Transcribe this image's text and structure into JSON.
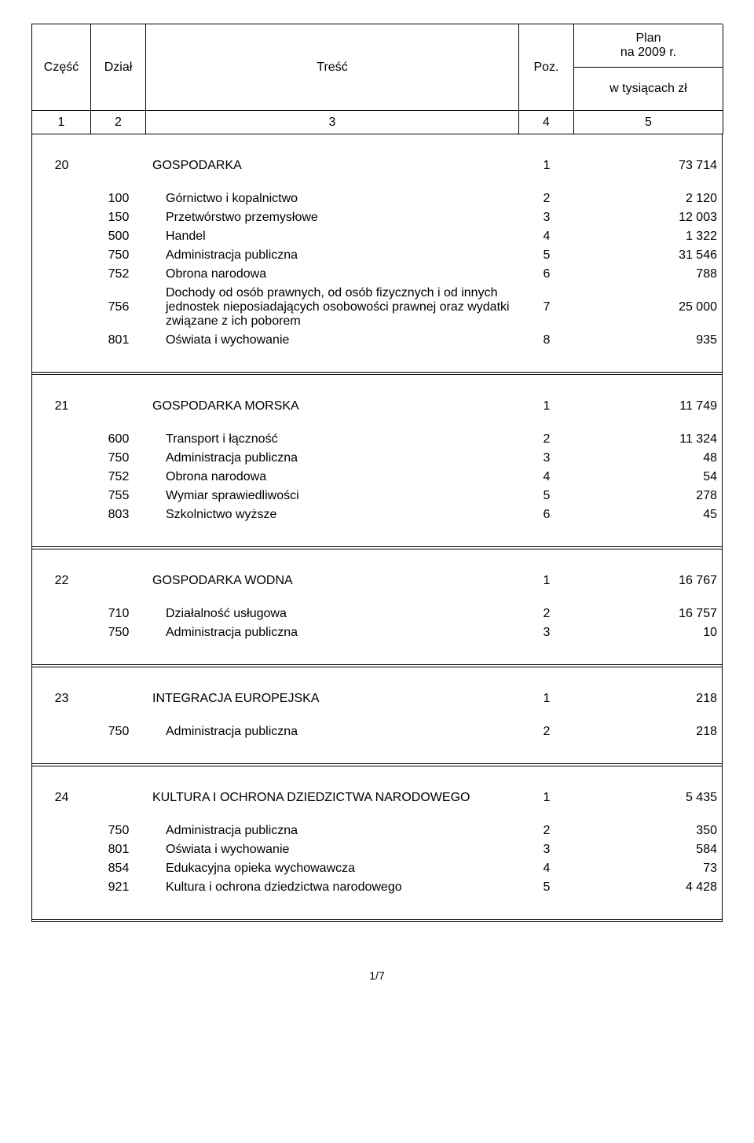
{
  "header": {
    "col0": "Część",
    "col1": "Dział",
    "col2": "Treść",
    "col3": "Poz.",
    "col4_top": "Plan\nna 2009 r.",
    "col4_bottom": "w tysiącach zł",
    "n0": "1",
    "n1": "2",
    "n2": "3",
    "n3": "4",
    "n4": "5"
  },
  "blocks": [
    {
      "title_col0": "20",
      "title_col2": "GOSPODARKA",
      "title_col3": "1",
      "title_col4": "73 714",
      "rows": [
        [
          "",
          "100",
          "Górnictwo i kopalnictwo",
          "2",
          "2 120"
        ],
        [
          "",
          "150",
          "Przetwórstwo przemysłowe",
          "3",
          "12 003"
        ],
        [
          "",
          "500",
          "Handel",
          "4",
          "1 322"
        ],
        [
          "",
          "750",
          "Administracja publiczna",
          "5",
          "31 546"
        ],
        [
          "",
          "752",
          "Obrona narodowa",
          "6",
          "788"
        ],
        [
          "",
          "756",
          "Dochody od osób prawnych, od osób fizycznych i od innych jednostek nieposiadających osobowości prawnej oraz wydatki związane z ich poborem",
          "7",
          "25 000"
        ],
        [
          "",
          "801",
          "Oświata i wychowanie",
          "8",
          "935"
        ]
      ]
    },
    {
      "title_col0": "21",
      "title_col2": "GOSPODARKA MORSKA",
      "title_col3": "1",
      "title_col4": "11 749",
      "rows": [
        [
          "",
          "600",
          "Transport i łączność",
          "2",
          "11 324"
        ],
        [
          "",
          "750",
          "Administracja publiczna",
          "3",
          "48"
        ],
        [
          "",
          "752",
          "Obrona narodowa",
          "4",
          "54"
        ],
        [
          "",
          "755",
          "Wymiar sprawiedliwości",
          "5",
          "278"
        ],
        [
          "",
          "803",
          "Szkolnictwo wyższe",
          "6",
          "45"
        ]
      ]
    },
    {
      "title_col0": "22",
      "title_col2": "GOSPODARKA WODNA",
      "title_col3": "1",
      "title_col4": "16 767",
      "rows": [
        [
          "",
          "710",
          "Działalność usługowa",
          "2",
          "16 757"
        ],
        [
          "",
          "750",
          "Administracja publiczna",
          "3",
          "10"
        ]
      ]
    },
    {
      "title_col0": "23",
      "title_col2": "INTEGRACJA EUROPEJSKA",
      "title_col3": "1",
      "title_col4": "218",
      "rows": [
        [
          "",
          "750",
          "Administracja publiczna",
          "2",
          "218"
        ]
      ]
    },
    {
      "title_col0": "24",
      "title_col2": "KULTURA I OCHRONA DZIEDZICTWA NARODOWEGO",
      "title_col3": "1",
      "title_col4": "5 435",
      "rows": [
        [
          "",
          "750",
          "Administracja publiczna",
          "2",
          "350"
        ],
        [
          "",
          "801",
          "Oświata i wychowanie",
          "3",
          "584"
        ],
        [
          "",
          "854",
          "Edukacyjna opieka wychowawcza",
          "4",
          "73"
        ],
        [
          "",
          "921",
          "Kultura i ochrona dziedzictwa narodowego",
          "5",
          "4 428"
        ]
      ]
    }
  ],
  "footer": "1/7"
}
